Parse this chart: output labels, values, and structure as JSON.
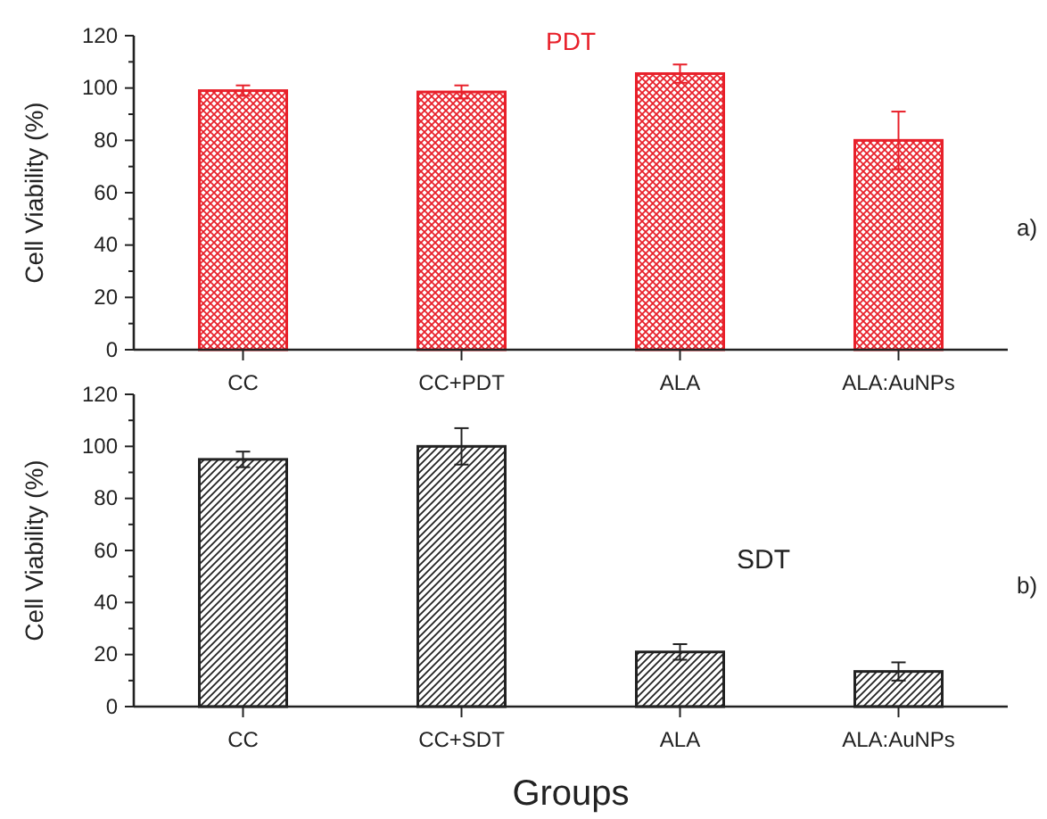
{
  "chart_data": [
    {
      "type": "bar",
      "title": "PDT",
      "ylabel": "Cell Viability (%)",
      "categories": [
        "CC",
        "CC+PDT",
        "ALA",
        "ALA:AuNPs"
      ],
      "series": [
        {
          "color": "#e8202a",
          "values": [
            99,
            98.5,
            105.5,
            80
          ],
          "errors": [
            2,
            2.5,
            3.5,
            11
          ]
        }
      ],
      "ylim": [
        0,
        120
      ],
      "yticks": [
        0,
        {
          "value": 10,
          "label": null
        },
        20,
        {
          "value": 30,
          "label": null
        },
        40,
        {
          "value": 50,
          "label": null
        },
        60,
        {
          "value": 70,
          "label": null
        },
        80,
        {
          "value": 90,
          "label": null
        },
        100,
        {
          "value": 110,
          "label": null
        },
        120
      ],
      "annotations": [
        "a)"
      ]
    },
    {
      "type": "bar",
      "xlabel": "Groups",
      "ylabel": "Cell Viability (%)",
      "categories": [
        "CC",
        "CC+SDT",
        "ALA",
        "ALA:AuNPs"
      ],
      "series": [
        {
          "color": "#222222",
          "values": [
            95,
            100,
            21,
            13.5
          ],
          "errors": [
            3,
            7,
            3,
            3.5
          ]
        }
      ],
      "ylim": [
        0,
        120
      ],
      "yticks": [
        0,
        {
          "value": 10,
          "label": null
        },
        20,
        {
          "value": 30,
          "label": null
        },
        40,
        {
          "value": 50,
          "label": null
        },
        60,
        {
          "value": 70,
          "label": null
        },
        80,
        {
          "value": 90,
          "label": null
        },
        100,
        {
          "value": 110,
          "label": null
        },
        120
      ],
      "annotations": [
        "SDT",
        "b)"
      ]
    }
  ]
}
